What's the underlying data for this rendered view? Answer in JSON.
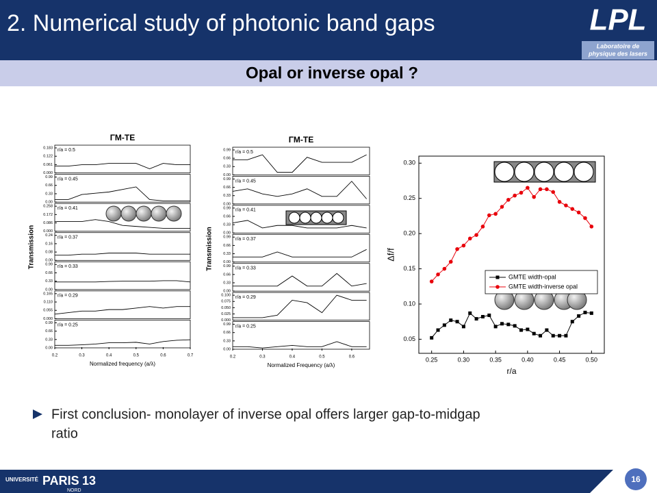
{
  "header": {
    "title": "2. Numerical study of photonic band gaps",
    "logo": "LPL",
    "logo_sub": [
      "Laboratoire de",
      "physique des lasers"
    ]
  },
  "subtitle": "Opal or inverse opal ?",
  "chart_data": [
    {
      "type": "stacked-lines",
      "title": "ΓM-TE",
      "xlabel": "Normalized frequency (a/λ)",
      "ylabel": "Transmission",
      "xlim": [
        0.2,
        0.7
      ],
      "xticks": [
        0.2,
        0.3,
        0.4,
        0.5,
        0.6,
        0.7
      ],
      "x": [
        0.2,
        0.25,
        0.3,
        0.35,
        0.4,
        0.45,
        0.5,
        0.55,
        0.6,
        0.65,
        0.7
      ],
      "color": "#000000",
      "subplots": [
        {
          "label": "r/a = 0.5",
          "ylim": [
            0,
            0.183
          ],
          "yticks": [
            {
              "value": 0,
              "label": "0.000"
            },
            0.061,
            0.122,
            0.183
          ],
          "values": [
            0.05,
            0.05,
            0.06,
            0.06,
            0.07,
            0.07,
            0.07,
            0.03,
            0.07,
            0.06,
            0.06
          ]
        },
        {
          "label": "r/a = 0.45",
          "ylim": [
            0,
            0.99
          ],
          "yticks": [
            {
              "value": 0,
              "label": "0.00"
            },
            0.33,
            0.66,
            0.99
          ],
          "values": [
            0.1,
            0.1,
            0.3,
            0.35,
            0.4,
            0.5,
            0.6,
            0.1,
            0.05,
            0.05,
            0.05
          ]
        },
        {
          "label": "r/a = 0.41",
          "ylim": [
            0,
            0.258
          ],
          "yticks": [
            {
              "value": 0,
              "label": "0.000"
            },
            0.086,
            0.172,
            0.258
          ],
          "values": [
            0.1,
            0.1,
            0.1,
            0.12,
            0.1,
            0.06,
            0.05,
            0.04,
            0.03,
            0.03,
            0.03
          ]
        },
        {
          "label": "r/a = 0.37",
          "ylim": [
            0,
            0.24
          ],
          "yticks": [
            {
              "value": 0,
              "label": "0.00"
            },
            0.08,
            0.16,
            0.24
          ],
          "values": [
            0.05,
            0.05,
            0.06,
            0.06,
            0.07,
            0.07,
            0.07,
            0.06,
            0.06,
            0.06,
            0.06
          ]
        },
        {
          "label": "r/a = 0.33",
          "ylim": [
            0,
            0.99
          ],
          "yticks": [
            {
              "value": 0,
              "label": "0.00"
            },
            0.33,
            0.66,
            0.99
          ],
          "values": [
            0.3,
            0.3,
            0.3,
            0.3,
            0.32,
            0.33,
            0.33,
            0.33,
            0.35,
            0.35,
            0.3
          ]
        },
        {
          "label": "r/a = 0.29",
          "ylim": [
            0,
            0.165
          ],
          "yticks": [
            {
              "value": 0,
              "label": "0.000"
            },
            0.055,
            {
              "value": 0.11,
              "label": "0.110"
            },
            0.165
          ],
          "values": [
            0.03,
            0.04,
            0.05,
            0.05,
            0.06,
            0.06,
            0.07,
            0.08,
            0.07,
            0.08,
            0.08
          ]
        },
        {
          "label": "r/a = 0.25",
          "ylim": [
            0,
            0.99
          ],
          "yticks": [
            {
              "value": 0,
              "label": "0.00"
            },
            0.33,
            0.66,
            0.99
          ],
          "values": [
            0.1,
            0.1,
            0.12,
            0.15,
            0.2,
            0.2,
            0.22,
            0.15,
            0.25,
            0.3,
            0.32
          ]
        }
      ]
    },
    {
      "type": "stacked-lines",
      "title": "ΓM-TE",
      "xlabel": "Normalized Frequency (a/λ)",
      "ylabel": "Transmission",
      "xlim": [
        0.2,
        0.66
      ],
      "xticks": [
        0.2,
        0.3,
        0.4,
        0.5,
        0.6
      ],
      "x": [
        0.2,
        0.25,
        0.3,
        0.35,
        0.4,
        0.45,
        0.5,
        0.55,
        0.6,
        0.65
      ],
      "color": "#000000",
      "subplots": [
        {
          "label": "r/a = 0.5",
          "ylim": [
            0,
            0.99
          ],
          "yticks": [
            {
              "value": 0,
              "label": "0.00"
            },
            0.33,
            0.66,
            0.99
          ],
          "values": [
            0.6,
            0.6,
            0.8,
            0.1,
            0.1,
            0.7,
            0.5,
            0.5,
            0.5,
            0.8
          ]
        },
        {
          "label": "r/a = 0.45",
          "ylim": [
            0,
            0.99
          ],
          "yticks": [
            {
              "value": 0,
              "label": "0.00"
            },
            0.33,
            0.66,
            0.99
          ],
          "values": [
            0.5,
            0.6,
            0.4,
            0.3,
            0.4,
            0.6,
            0.3,
            0.3,
            0.9,
            0.2
          ]
        },
        {
          "label": "r/a = 0.41",
          "ylim": [
            0,
            0.99
          ],
          "yticks": [
            {
              "value": 0,
              "label": "0.00"
            },
            0.33,
            0.66,
            0.99
          ],
          "values": [
            0.4,
            0.5,
            0.2,
            0.3,
            0.3,
            0.2,
            0.2,
            0.2,
            0.3,
            0.2
          ]
        },
        {
          "label": "r/a = 0.37",
          "ylim": [
            0,
            0.99
          ],
          "yticks": [
            {
              "value": 0,
              "label": "0.00"
            },
            0.33,
            0.66,
            0.99
          ],
          "values": [
            0.2,
            0.2,
            0.2,
            0.4,
            0.2,
            0.2,
            0.2,
            0.2,
            0.2,
            0.5
          ]
        },
        {
          "label": "r/a = 0.33",
          "ylim": [
            0,
            0.99
          ],
          "yticks": [
            {
              "value": 0,
              "label": "0.00"
            },
            0.33,
            0.66,
            0.99
          ],
          "values": [
            0.2,
            0.2,
            0.2,
            0.2,
            0.6,
            0.2,
            0.2,
            0.7,
            0.2,
            0.3
          ]
        },
        {
          "label": "r/a = 0.29",
          "ylim": [
            0,
            0.1
          ],
          "yticks": [
            {
              "value": 0,
              "label": "0.000"
            },
            0.025,
            {
              "value": 0.05,
              "label": "0.050"
            },
            0.075,
            {
              "value": 0.1,
              "label": "0.100"
            }
          ],
          "values": [
            0.01,
            0.01,
            0.01,
            0.02,
            0.08,
            0.07,
            0.03,
            0.1,
            0.08,
            0.08
          ]
        },
        {
          "label": "r/a = 0.25",
          "ylim": [
            0,
            0.99
          ],
          "yticks": [
            {
              "value": 0,
              "label": "0.00"
            },
            0.33,
            0.66,
            0.99
          ],
          "values": [
            0.1,
            0.1,
            0.05,
            0.1,
            0.15,
            0.1,
            0.1,
            0.3,
            0.1,
            0.1
          ]
        }
      ]
    },
    {
      "type": "line",
      "xlabel": "r/a",
      "ylabel": "Δf/f",
      "xlim": [
        0.23,
        0.52
      ],
      "xticks": [
        0.25,
        {
          "value": 0.3,
          "label": "0.30"
        },
        0.35,
        {
          "value": 0.4,
          "label": "0.40"
        },
        0.45,
        {
          "value": 0.5,
          "label": "0.50"
        }
      ],
      "ylim": [
        0.03,
        0.31
      ],
      "yticks": [
        0.05,
        {
          "value": 0.1,
          "label": "0.10"
        },
        0.15,
        {
          "value": 0.2,
          "label": "0.20"
        },
        0.25,
        {
          "value": 0.3,
          "label": "0.30"
        }
      ],
      "legend": "right",
      "x": [
        0.25,
        0.26,
        0.27,
        0.28,
        0.29,
        0.3,
        0.31,
        0.32,
        0.33,
        0.34,
        0.35,
        0.36,
        0.37,
        0.38,
        0.39,
        0.4,
        0.41,
        0.42,
        0.43,
        0.44,
        0.45,
        0.46,
        0.47,
        0.48,
        0.49,
        0.5
      ],
      "series": [
        {
          "name": "GMTE width-opal",
          "color": "#000000",
          "marker": "square",
          "values": [
            0.052,
            0.063,
            0.07,
            0.077,
            0.075,
            0.068,
            0.087,
            0.079,
            0.082,
            0.084,
            0.068,
            0.072,
            0.071,
            0.069,
            0.063,
            0.064,
            0.058,
            0.055,
            0.063,
            0.055,
            0.055,
            0.055,
            0.075,
            0.083,
            0.088,
            0.087
          ]
        },
        {
          "name": "GMTE width-inverse opal",
          "color": "#e8000b",
          "marker": "circle",
          "values": [
            0.132,
            0.142,
            0.15,
            0.16,
            0.178,
            0.183,
            0.193,
            0.198,
            0.21,
            0.226,
            0.228,
            0.238,
            0.248,
            0.254,
            0.258,
            0.265,
            0.252,
            0.263,
            0.263,
            0.259,
            0.245,
            0.24,
            0.235,
            0.23,
            0.222,
            0.21
          ]
        }
      ]
    }
  ],
  "bullet": [
    "First conclusion- monolayer of inverse opal  offers larger gap-to-midgap",
    "ratio"
  ],
  "footer": {
    "university": "UNIVERSITÉ",
    "name": "PARIS",
    "number": "13",
    "sub": "NORD",
    "page": "16"
  }
}
